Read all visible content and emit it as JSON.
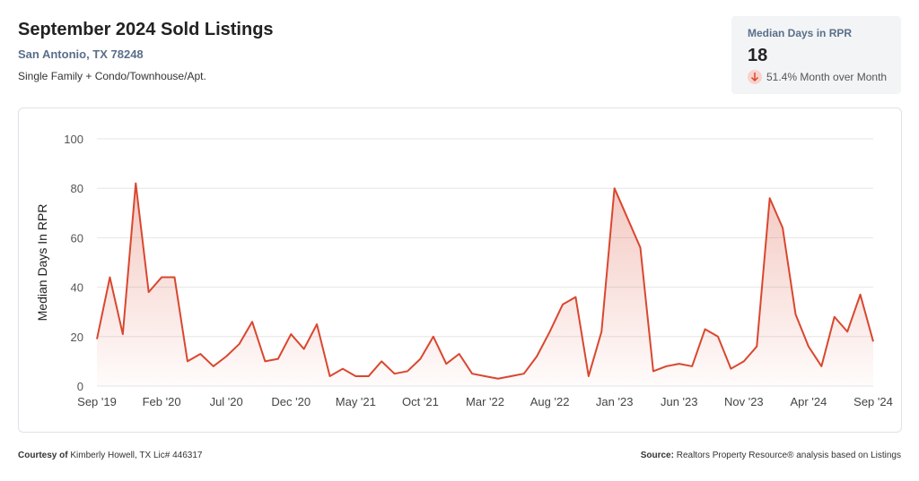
{
  "header": {
    "title": "September 2024 Sold Listings",
    "location": "San Antonio, TX 78248",
    "property_types": "Single Family + Condo/Townhouse/Apt."
  },
  "kpi": {
    "label": "Median Days in RPR",
    "value": 18,
    "change": "51.4% Month over Month"
  },
  "chart_data": {
    "type": "line",
    "ylabel": "Median Days In RPR",
    "categories": [
      "Sep '19",
      null,
      null,
      null,
      null,
      "Feb '20",
      null,
      null,
      null,
      null,
      "Jul '20",
      null,
      null,
      null,
      null,
      "Dec '20",
      null,
      null,
      null,
      null,
      "May '21",
      null,
      null,
      null,
      null,
      "Oct '21",
      null,
      null,
      null,
      null,
      "Mar '22",
      null,
      null,
      null,
      null,
      "Aug '22",
      null,
      null,
      null,
      null,
      "Jan '23",
      null,
      null,
      null,
      null,
      "Jun '23",
      null,
      null,
      null,
      null,
      "Nov '23",
      null,
      null,
      null,
      null,
      "Apr '24",
      null,
      null,
      null,
      null,
      "Sep '24"
    ],
    "series": [
      {
        "name": "Median Days In RPR",
        "color": "#d9472f",
        "values": [
          19,
          44,
          21,
          82,
          38,
          44,
          44,
          10,
          13,
          8,
          12,
          17,
          26,
          10,
          11,
          21,
          15,
          25,
          4,
          7,
          4,
          4,
          10,
          5,
          6,
          11,
          20,
          9,
          13,
          5,
          4,
          3,
          4,
          5,
          12,
          22,
          33,
          36,
          4,
          22,
          80,
          68,
          56,
          6,
          8,
          9,
          8,
          23,
          20,
          7,
          10,
          16,
          76,
          64,
          29,
          16,
          8,
          28,
          22,
          37,
          18
        ]
      }
    ],
    "ylim": [
      0,
      100
    ],
    "yticks": [
      0,
      20,
      40,
      60,
      80,
      100
    ],
    "grid": true
  },
  "footer": {
    "courtesy_label": "Courtesy of",
    "courtesy": "Kimberly Howell, TX Lic# 446317",
    "source_label": "Source:",
    "source": "Realtors Property Resource® analysis based on Listings"
  }
}
